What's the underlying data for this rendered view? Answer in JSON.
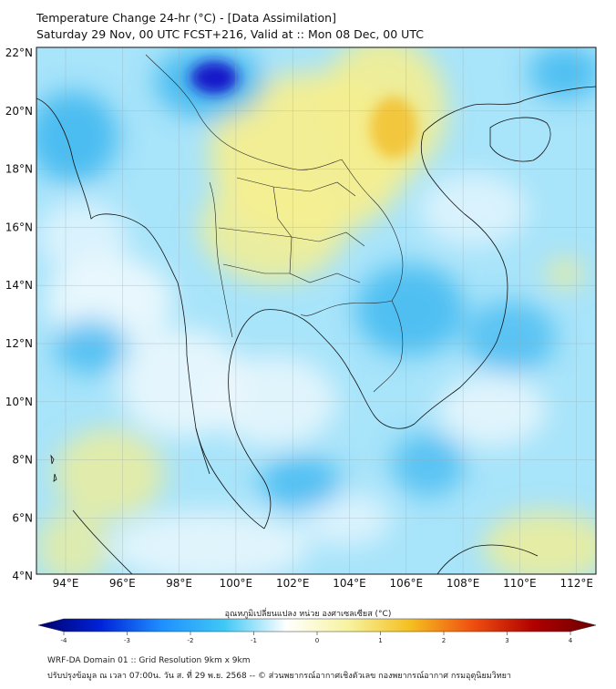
{
  "title": {
    "line1": "Temperature Change 24-hr (°C) - [Data Assimilation]",
    "line2": "Saturday 29 Nov, 00 UTC FCST+216, Valid at :: Mon 08 Dec, 00 UTC"
  },
  "map": {
    "lat_labels": [
      "22°N",
      "20°N",
      "18°N",
      "16°N",
      "14°N",
      "12°N",
      "10°N",
      "8°N",
      "6°N",
      "4°N"
    ],
    "lon_labels": [
      "94°E",
      "96°E",
      "98°E",
      "100°E",
      "102°E",
      "104°E",
      "106°E",
      "108°E",
      "110°E",
      "112°E"
    ],
    "field_colors": {
      "cold": "#1818c8",
      "cool": "#40b8f0",
      "light": "#a8e4fa",
      "neutral": "#eef8fd",
      "warm": "#f4ee90",
      "warmer": "#f2c030"
    }
  },
  "colorbar": {
    "title": "อุณหภูมิเปลี่ยนแปลง หน่วย องศาเซลเซียส (°C)",
    "ticks": [
      "-4",
      "-3",
      "-2",
      "-1",
      "0",
      "1",
      "2",
      "3",
      "4"
    ],
    "stops": [
      "#00006a",
      "#0022d8",
      "#1e90ff",
      "#3fc8f5",
      "#ffffff",
      "#f7f3a0",
      "#f4c020",
      "#f05010",
      "#b00000",
      "#6a0000"
    ]
  },
  "footer": {
    "line1": "WRF-DA Domain 01 :: Grid Resolution 9km x 9km",
    "line2": "ปรับปรุงข้อมูล ณ เวลา 07:00น. วัน ส. ที่ 29 พ.ย. 2568 -- © ส่วนพยากรณ์อากาศเชิงตัวเลข กองพยากรณ์อากาศ กรมอุตุนิยมวิทยา"
  }
}
